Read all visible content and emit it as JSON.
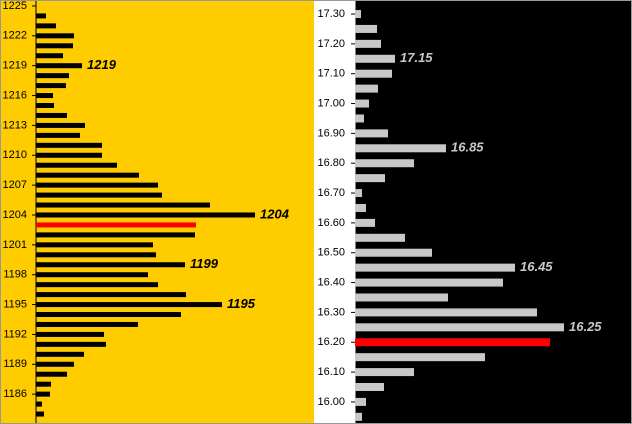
{
  "chart_data": [
    {
      "type": "bar",
      "orientation": "horizontal",
      "background": "#ffcc00",
      "bar_color": "#000000",
      "label_color": "#000000",
      "highlight": 1203,
      "highlight_color": "#ff0000",
      "y": [
        1224,
        1223,
        1222,
        1221,
        1220,
        1219,
        1218,
        1217,
        1216,
        1215,
        1214,
        1213,
        1212,
        1211,
        1210,
        1209,
        1208,
        1207,
        1206,
        1205,
        1204,
        1203,
        1202,
        1201,
        1200,
        1199,
        1198,
        1197,
        1196,
        1195,
        1194,
        1193,
        1192,
        1191,
        1190,
        1189,
        1188,
        1187,
        1186,
        1185,
        1184
      ],
      "values": [
        10,
        20,
        38,
        37,
        27,
        46,
        33,
        30,
        17,
        18,
        31,
        49,
        44,
        66,
        66,
        81,
        103,
        122,
        126,
        174,
        219,
        160,
        159,
        117,
        120,
        149,
        112,
        122,
        150,
        186,
        145,
        102,
        68,
        70,
        48,
        38,
        31,
        15,
        14,
        6,
        8
      ],
      "annotations": [
        1219,
        1204,
        1199,
        1195
      ],
      "xlim": [
        0,
        278
      ],
      "ylim": [
        1183,
        1225.6
      ],
      "yticks": [
        1186,
        1189,
        1192,
        1195,
        1198,
        1201,
        1204,
        1207,
        1210,
        1213,
        1216,
        1219,
        1222,
        1225
      ]
    },
    {
      "type": "bar",
      "orientation": "horizontal",
      "background": "#000000",
      "bar_color": "#c8c8c8",
      "label_color": "#c8c8c8",
      "highlight": 16.2,
      "highlight_color": "#ff0000",
      "y": [
        17.3,
        17.25,
        17.2,
        17.15,
        17.1,
        17.05,
        17.0,
        16.95,
        16.9,
        16.85,
        16.8,
        16.75,
        16.7,
        16.65,
        16.6,
        16.55,
        16.5,
        16.45,
        16.4,
        16.35,
        16.3,
        16.25,
        16.2,
        16.15,
        16.1,
        16.05,
        16.0,
        15.95
      ],
      "values": [
        6,
        22,
        26,
        40,
        37,
        23,
        14,
        9,
        33,
        91,
        59,
        30,
        7,
        11,
        20,
        50,
        77,
        160,
        148,
        93,
        182,
        209,
        195,
        130,
        59,
        29,
        11,
        7
      ],
      "annotations": [
        17.15,
        16.85,
        16.45,
        16.25
      ],
      "xlim": [
        0,
        277
      ],
      "ylim": [
        15.926,
        17.347
      ],
      "yticks": [
        {
          "value": 16.0,
          "label": "16.00"
        },
        {
          "value": 16.1,
          "label": "16.10"
        },
        {
          "value": 16.2,
          "label": "16.20"
        },
        {
          "value": 16.3,
          "label": "16.30"
        },
        {
          "value": 16.4,
          "label": "16.40"
        },
        {
          "value": 16.5,
          "label": "16.50"
        },
        {
          "value": 16.6,
          "label": "16.60"
        },
        {
          "value": 16.7,
          "label": "16.70"
        },
        {
          "value": 16.8,
          "label": "16.80"
        },
        {
          "value": 16.9,
          "label": "16.90"
        },
        {
          "value": 17.0,
          "label": "17.00"
        },
        {
          "value": 17.1,
          "label": "17.10"
        },
        {
          "value": 17.2,
          "label": "17.20"
        },
        {
          "value": 17.3,
          "label": "17.30"
        }
      ]
    }
  ]
}
